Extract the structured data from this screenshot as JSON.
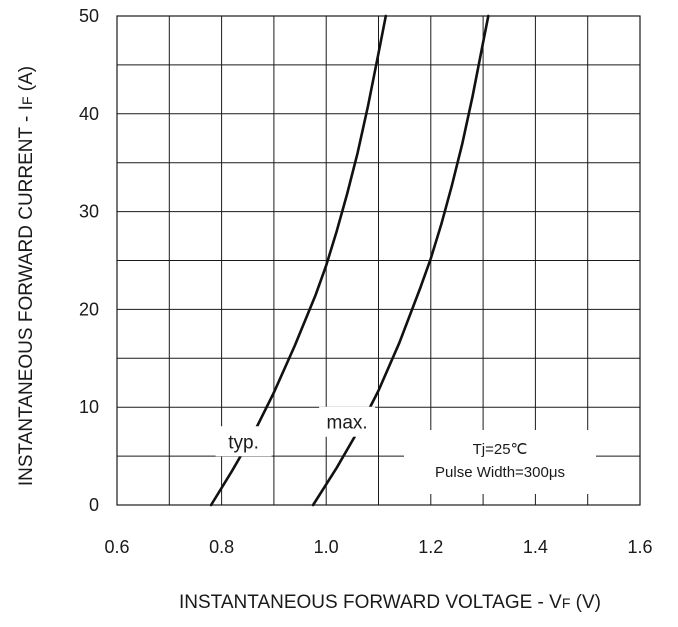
{
  "chart_data": {
    "type": "line",
    "xlabel": "INSTANTANEOUS FORWARD VOLTAGE - V",
    "xlabel_sub": "F",
    "xlabel_unit": " (V)",
    "ylabel": "INSTANTANEOUS FORWARD CURRENT - I",
    "ylabel_sub": "F",
    "ylabel_unit": " (A)",
    "xlim": [
      0.6,
      1.6
    ],
    "ylim": [
      0,
      50
    ],
    "x_ticks": [
      "0.6",
      "0.8",
      "1.0",
      "1.2",
      "1.4",
      "1.6"
    ],
    "y_ticks": [
      "0",
      "10",
      "20",
      "30",
      "40",
      "50"
    ],
    "grid": true,
    "annotations": {
      "condition_1": "Tj=25℃",
      "condition_2": "Pulse Width=300μs"
    },
    "series": [
      {
        "name": "typ.",
        "x": [
          0.78,
          0.82,
          0.86,
          0.9,
          0.94,
          0.98,
          1.0,
          1.02,
          1.04,
          1.06,
          1.08,
          1.1,
          1.114
        ],
        "y": [
          0,
          3.5,
          7.2,
          11.5,
          16.3,
          21.5,
          24.5,
          28.0,
          31.8,
          36.0,
          40.8,
          46.2,
          50
        ]
      },
      {
        "name": "max.",
        "x": [
          0.975,
          1.02,
          1.06,
          1.1,
          1.14,
          1.18,
          1.2,
          1.22,
          1.24,
          1.26,
          1.28,
          1.3,
          1.31
        ],
        "y": [
          0,
          3.8,
          7.5,
          11.7,
          16.6,
          22.2,
          25.2,
          28.7,
          32.6,
          36.9,
          41.8,
          47.3,
          50
        ]
      }
    ]
  }
}
